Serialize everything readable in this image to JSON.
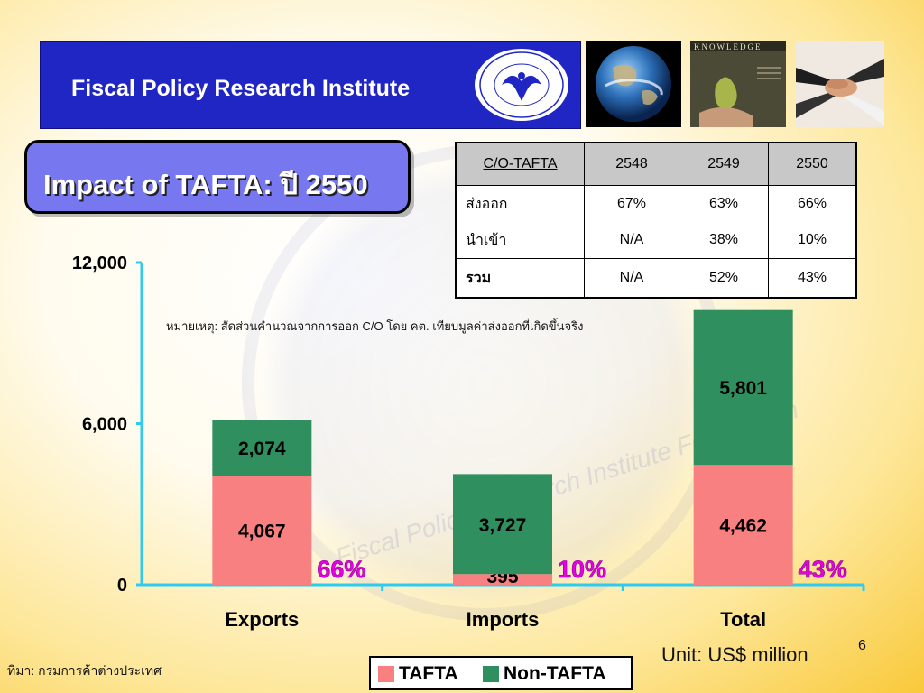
{
  "header": {
    "title": "Fiscal Policy Research Institute"
  },
  "slide": {
    "title": "Impact of TAFTA: ปี 2550"
  },
  "co_table": {
    "columns": [
      "C/O-TAFTA",
      "2548",
      "2549",
      "2550"
    ],
    "rows": [
      [
        "ส่งออก",
        "67%",
        "63%",
        "66%"
      ],
      [
        "นำเข้า",
        "N/A",
        "38%",
        "10%"
      ],
      [
        "รวม",
        "N/A",
        "52%",
        "43%"
      ]
    ]
  },
  "note": "หมายเหตุ: สัดส่วนคำนวณจากการออก C/O โดย คต. เทียบมูลค่าส่งออกที่เกิดขึ้นจริง",
  "chart_data": {
    "type": "bar",
    "stacked": true,
    "categories": [
      "Exports",
      "Imports",
      "Total"
    ],
    "series": [
      {
        "name": "TAFTA",
        "values": [
          4067,
          395,
          4462
        ],
        "color": "#f98080"
      },
      {
        "name": "Non-TAFTA",
        "values": [
          2074,
          3727,
          5801
        ],
        "color": "#2f8f5f"
      }
    ],
    "data_labels": {
      "TAFTA": [
        "4,067",
        "395",
        "4,462"
      ],
      "Non-TAFTA": [
        "2,074",
        "3,727",
        "5,801"
      ]
    },
    "share_labels": [
      "66%",
      "10%",
      "43%"
    ],
    "share_color": "#e600e6",
    "y_ticks": [
      0,
      6000,
      12000
    ],
    "y_tick_labels": [
      "0",
      "6,000",
      "12,000"
    ],
    "ylim": [
      0,
      12000
    ],
    "legend_position": "bottom"
  },
  "unit_label": "Unit: US$ million",
  "page_number": "6",
  "source": "ที่มา: กรมการค้าต่างประเทศ",
  "watermark": {
    "text1": "Fiscal Policy Research Institute Foundation"
  }
}
